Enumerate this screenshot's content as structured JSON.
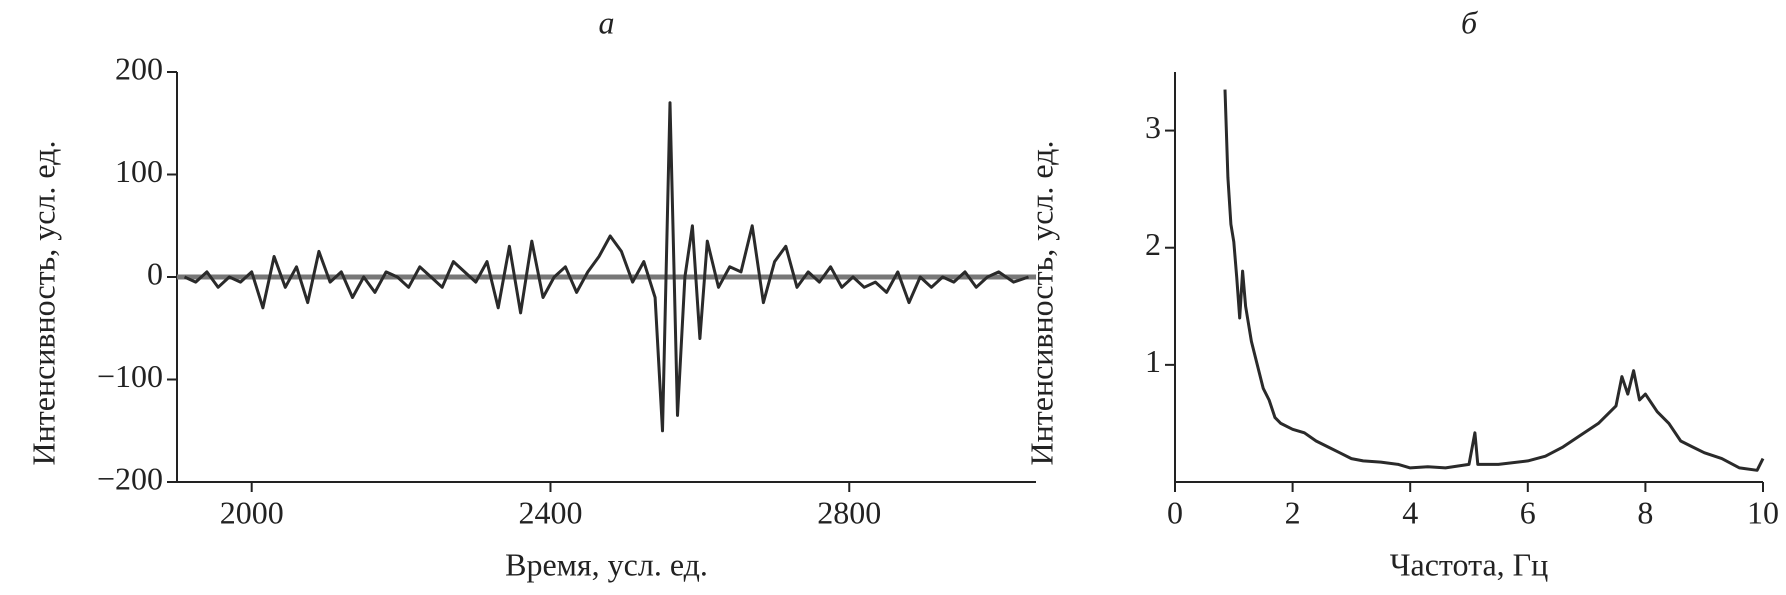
{
  "chart_data": [
    {
      "type": "line",
      "title": "а",
      "x_label": "Время, усл. ед.",
      "y_label": "Интенсивность, усл. ед.",
      "x": [
        1910,
        1925,
        1940,
        1955,
        1970,
        1985,
        2000,
        2015,
        2030,
        2045,
        2060,
        2075,
        2090,
        2105,
        2120,
        2135,
        2150,
        2165,
        2180,
        2195,
        2210,
        2225,
        2240,
        2255,
        2270,
        2285,
        2300,
        2315,
        2330,
        2345,
        2360,
        2375,
        2390,
        2405,
        2420,
        2435,
        2450,
        2465,
        2480,
        2495,
        2510,
        2525,
        2540,
        2550,
        2560,
        2570,
        2580,
        2590,
        2600,
        2610,
        2625,
        2640,
        2655,
        2670,
        2685,
        2700,
        2715,
        2730,
        2745,
        2760,
        2775,
        2790,
        2805,
        2820,
        2835,
        2850,
        2865,
        2880,
        2895,
        2910,
        2925,
        2940,
        2955,
        2970,
        2985,
        3000,
        3020,
        3040
      ],
      "series": [
        {
          "color": "#2a2a2a",
          "values": [
            0,
            -5,
            5,
            -10,
            0,
            -5,
            5,
            -30,
            20,
            -10,
            10,
            -25,
            25,
            -5,
            5,
            -20,
            0,
            -15,
            5,
            0,
            -10,
            10,
            0,
            -10,
            15,
            5,
            -5,
            15,
            -30,
            30,
            -35,
            35,
            -20,
            0,
            10,
            -15,
            5,
            20,
            40,
            25,
            -5,
            15,
            -20,
            -150,
            170,
            -135,
            0,
            50,
            -60,
            35,
            -10,
            10,
            5,
            50,
            -25,
            15,
            30,
            -10,
            5,
            -5,
            10,
            -10,
            0,
            -10,
            -5,
            -15,
            5,
            -25,
            0,
            -10,
            0,
            -5,
            5,
            -10,
            0,
            5,
            -5,
            0
          ]
        }
      ],
      "hline": 0,
      "hline_color": "#777777",
      "xlim": [
        1900,
        3050
      ],
      "ylim": [
        -200,
        200
      ],
      "xticks": [
        2000,
        2400,
        2800
      ],
      "yticks": [
        {
          "value": -200,
          "label": "−200"
        },
        {
          "value": -100,
          "label": "−100"
        },
        0,
        100,
        200
      ]
    },
    {
      "type": "line",
      "title": "б",
      "x_label": "Частота, Гц",
      "y_label": "Интенсивность, усл. ед.",
      "x": [
        0.85,
        0.9,
        0.95,
        1.0,
        1.05,
        1.1,
        1.15,
        1.2,
        1.3,
        1.4,
        1.5,
        1.6,
        1.7,
        1.8,
        2.0,
        2.2,
        2.4,
        2.6,
        2.8,
        3.0,
        3.2,
        3.5,
        3.8,
        4.0,
        4.3,
        4.6,
        5.0,
        5.1,
        5.15,
        5.5,
        6.0,
        6.3,
        6.6,
        6.9,
        7.2,
        7.5,
        7.6,
        7.7,
        7.8,
        7.9,
        8.0,
        8.2,
        8.4,
        8.6,
        8.8,
        9.0,
        9.3,
        9.6,
        9.9,
        10.0
      ],
      "series": [
        {
          "color": "#2a2a2a",
          "values": [
            3.35,
            2.6,
            2.2,
            2.05,
            1.75,
            1.4,
            1.8,
            1.5,
            1.2,
            1.0,
            0.8,
            0.7,
            0.55,
            0.5,
            0.45,
            0.42,
            0.35,
            0.3,
            0.25,
            0.2,
            0.18,
            0.17,
            0.15,
            0.12,
            0.13,
            0.12,
            0.15,
            0.42,
            0.15,
            0.15,
            0.18,
            0.22,
            0.3,
            0.4,
            0.5,
            0.65,
            0.9,
            0.75,
            0.95,
            0.7,
            0.75,
            0.6,
            0.5,
            0.35,
            0.3,
            0.25,
            0.2,
            0.12,
            0.1,
            0.2
          ]
        }
      ],
      "xlim": [
        0,
        10
      ],
      "ylim": [
        0,
        3.5
      ],
      "xticks": [
        0,
        2,
        4,
        6,
        8,
        10
      ],
      "yticks": [
        1,
        2,
        3
      ]
    }
  ]
}
